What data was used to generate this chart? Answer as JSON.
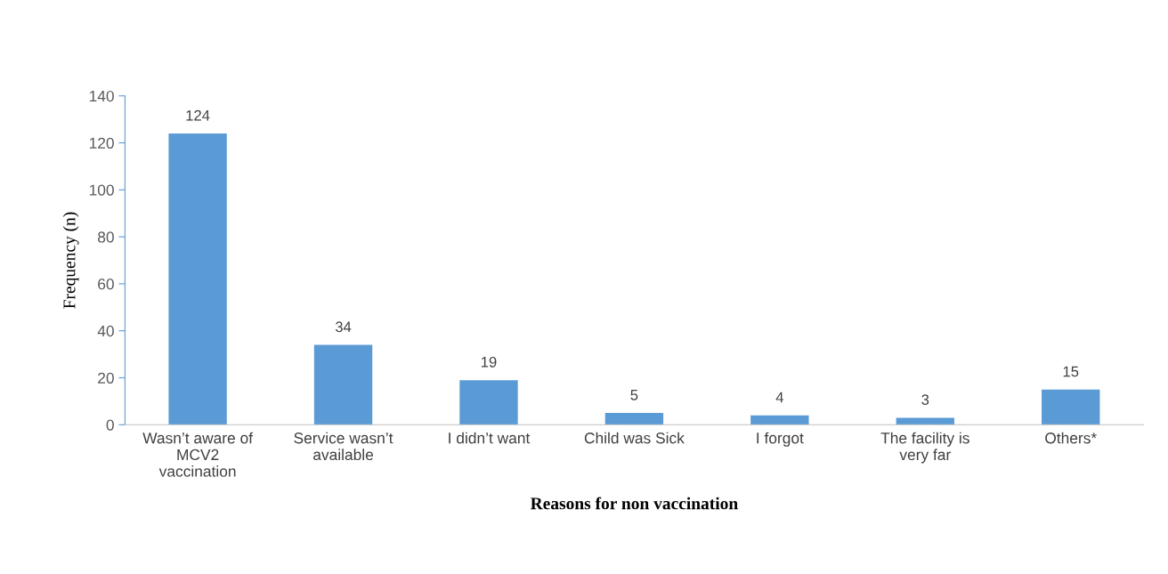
{
  "chart_data": {
    "type": "bar",
    "xlabel": "Reasons for non vaccination",
    "ylabel": "Frequency (n)",
    "categories": [
      "Wasn’t aware of\nMCV2\nvaccination",
      "Service wasn’t\navailable",
      "I didn’t want",
      "Child was Sick",
      "I forgot",
      "The facility is\nvery far",
      "Others*"
    ],
    "values": [
      124,
      34,
      19,
      5,
      4,
      3,
      15
    ],
    "color": "#5b9bd5",
    "ylim": [
      0,
      140
    ],
    "yticks": [
      0,
      20,
      40,
      60,
      80,
      100,
      120,
      140
    ],
    "grid": false,
    "data_labels": true
  }
}
